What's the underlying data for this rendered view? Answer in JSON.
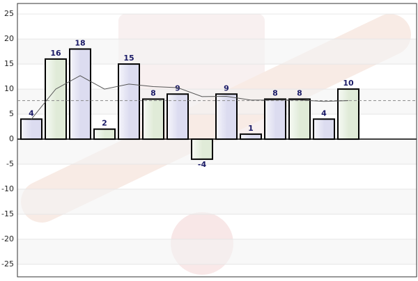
{
  "chart_data": {
    "type": "bar",
    "categories": [
      null,
      null,
      null,
      null,
      null,
      null,
      null,
      null,
      null,
      null,
      null,
      null,
      null,
      null
    ],
    "values": [
      4,
      16,
      18,
      2,
      15,
      8,
      9,
      -4,
      9,
      1,
      8,
      8,
      4,
      10
    ],
    "colors": [
      "#dcdcf0",
      "#e0ebd8",
      "#dcdcf0",
      "#e0ebd8",
      "#dcdcf0",
      "#e0ebd8",
      "#dcdcf0",
      "#e0ebd8",
      "#dcdcf0",
      "#dcdcf0",
      "#dcdcf0",
      "#e0ebd8",
      "#dcdcf0",
      "#e0ebd8"
    ],
    "running_average": [
      4,
      10,
      12.67,
      10,
      11,
      10.5,
      10.29,
      8.5,
      8.56,
      7.8,
      7.82,
      7.83,
      7.54,
      7.71
    ],
    "running_average_color": "#555555",
    "mean": 7.71,
    "mean_color": "#888888",
    "ylim": [
      -27.5,
      27.1
    ],
    "yticks": [
      -25,
      -20,
      -15,
      -10,
      -5,
      0,
      5,
      10,
      15,
      20,
      25
    ],
    "grid": true
  }
}
